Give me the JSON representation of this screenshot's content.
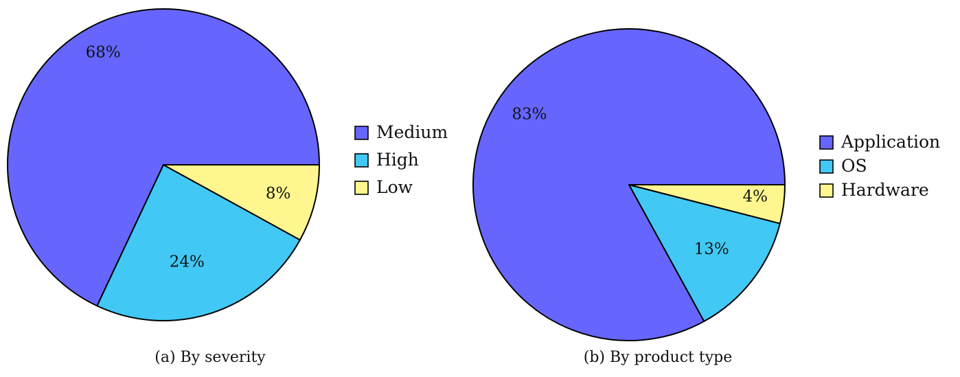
{
  "chart_data": [
    {
      "type": "pie",
      "caption": "(a) By severity",
      "slices": [
        {
          "label": "Medium",
          "value": 68,
          "value_label": "68%",
          "color": "#6666ff"
        },
        {
          "label": "High",
          "value": 24,
          "value_label": "24%",
          "color": "#42c8f4"
        },
        {
          "label": "Low",
          "value": 8,
          "value_label": "8%",
          "color": "#fff68f"
        }
      ],
      "legend_position": "right"
    },
    {
      "type": "pie",
      "caption": "(b) By product type",
      "slices": [
        {
          "label": "Application",
          "value": 83,
          "value_label": "83%",
          "color": "#6666ff"
        },
        {
          "label": "OS",
          "value": 13,
          "value_label": "13%",
          "color": "#42c8f4"
        },
        {
          "label": "Hardware",
          "value": 4,
          "value_label": "4%",
          "color": "#fff68f"
        }
      ],
      "legend_position": "right"
    }
  ]
}
